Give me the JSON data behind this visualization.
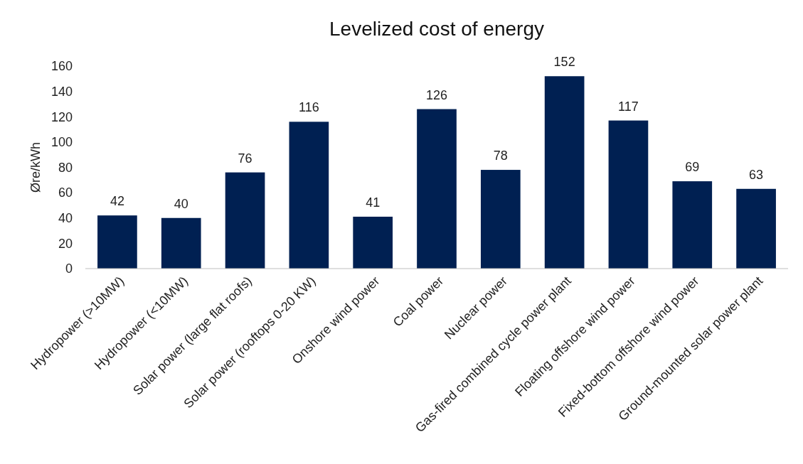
{
  "chart_data": {
    "type": "bar",
    "title": "Levelized cost of energy",
    "ylabel": "Øre/kWh",
    "categories": [
      "Hydropower (>10MW)",
      "Hydropower (<10MW)",
      "Solar power (large flat roofs)",
      "Solar power (rooftops 0-20 KW)",
      "Onshore wind power",
      "Coal power",
      "Nuclear power",
      "Gas-fired combined cycle power plant",
      "Floating offshore wind power",
      "Fixed-bottom offshore wind power",
      "Ground-mounted solar power plant"
    ],
    "values": [
      42,
      40,
      76,
      116,
      41,
      126,
      78,
      152,
      117,
      69,
      63
    ],
    "color": "#002052",
    "ylim": [
      0,
      160
    ],
    "yticks": [
      0,
      20,
      40,
      60,
      80,
      100,
      120,
      140,
      160
    ],
    "data_labels": true
  }
}
